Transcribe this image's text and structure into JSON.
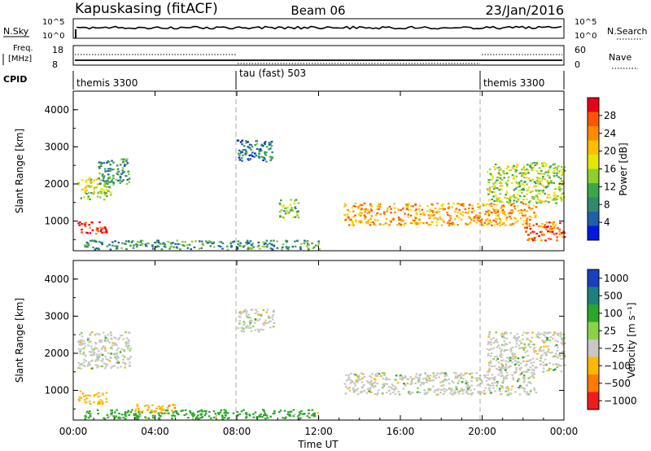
{
  "header": {
    "station": "Kapuskasing (fitACF)",
    "beam": "Beam 06",
    "date": "23/Jan/2016"
  },
  "strips": {
    "nsky_label": "N.Sky",
    "nsky_ticks": [
      "10^5",
      "10^0"
    ],
    "nsearch_label": "N.Search",
    "nsearch_ticks": [
      "10^5",
      "10^0"
    ],
    "freq_label_1": "Freq.",
    "freq_label_2": "[MHz]",
    "freq_ticks": [
      "18",
      "8"
    ],
    "nave_label": "Nave",
    "nave_ticks": [
      "60",
      "0"
    ],
    "cpid_label": "CPID",
    "cpid_segments": [
      "themis 3300",
      "tau (fast) 503",
      "themis 3300"
    ]
  },
  "axes": {
    "ylabel": "Slant Range [km]",
    "xlabel": "Time UT",
    "y_ticks": [
      "4000",
      "3000",
      "2000",
      "1000"
    ],
    "x_ticks": [
      "00:00",
      "04:00",
      "08:00",
      "12:00",
      "16:00",
      "20:00",
      "00:00"
    ]
  },
  "power_colorbar": {
    "label": "Power [dB]",
    "ticks": [
      "28",
      "24",
      "20",
      "16",
      "12",
      "8",
      "4"
    ],
    "colors": [
      "#e8001a",
      "#ff5500",
      "#ff8c00",
      "#ffbf00",
      "#e6e600",
      "#8ccf2e",
      "#3aa64a",
      "#2f8a6c",
      "#1f5ea8",
      "#0018e0"
    ]
  },
  "velocity_colorbar": {
    "label": "Velocity [m s⁻¹]",
    "ticks": [
      "1000",
      "500",
      "100",
      "25",
      "−25",
      "−100",
      "−500",
      "−1000"
    ],
    "colors": [
      "#1b3fbf",
      "#1f7f7f",
      "#2aa62a",
      "#8ad24a",
      "#c8c8c2",
      "#ffb800",
      "#ff7a00",
      "#ee1c1c"
    ]
  },
  "chart_data": [
    {
      "type": "heatmap",
      "title": "Power",
      "xlabel": "Time UT",
      "ylabel": "Slant Range [km]",
      "xlim": [
        "00:00",
        "24:00"
      ],
      "ylim": [
        200,
        4500
      ],
      "colorbar": "Power [dB]",
      "scale_range": [
        0,
        30
      ],
      "echo_regions": [
        {
          "t": [
            0.2,
            1.8
          ],
          "range_km": [
            1600,
            2200
          ],
          "level_db": 14
        },
        {
          "t": [
            0.2,
            1.6
          ],
          "range_km": [
            650,
            1000
          ],
          "level_db": 28
        },
        {
          "t": [
            1.2,
            2.7
          ],
          "range_km": [
            2000,
            2700
          ],
          "level_db": 8
        },
        {
          "t": [
            8.0,
            9.8
          ],
          "range_km": [
            2600,
            3200
          ],
          "level_db": 6
        },
        {
          "t": [
            10.0,
            11.0
          ],
          "range_km": [
            1100,
            1600
          ],
          "level_db": 12
        },
        {
          "t": [
            13.2,
            22.6
          ],
          "range_km": [
            900,
            1500
          ],
          "level_db": 22
        },
        {
          "t": [
            20.2,
            24.0
          ],
          "range_km": [
            1500,
            2600
          ],
          "level_db": 14
        },
        {
          "t": [
            22.0,
            24.0
          ],
          "range_km": [
            500,
            1000
          ],
          "level_db": 26
        },
        {
          "t": [
            0.5,
            12.0
          ],
          "range_km": [
            250,
            500
          ],
          "level_db": 8
        }
      ]
    },
    {
      "type": "heatmap",
      "title": "Velocity",
      "xlabel": "Time UT",
      "ylabel": "Slant Range [km]",
      "xlim": [
        "00:00",
        "24:00"
      ],
      "ylim": [
        200,
        4500
      ],
      "colorbar": "Velocity [m s⁻¹]",
      "scale_range": [
        -1000,
        1000
      ],
      "echo_regions": [
        {
          "t": [
            0.2,
            2.8
          ],
          "range_km": [
            1600,
            2600
          ],
          "velocity": 0
        },
        {
          "t": [
            0.2,
            1.6
          ],
          "range_km": [
            650,
            1000
          ],
          "velocity": -100
        },
        {
          "t": [
            8.0,
            9.8
          ],
          "range_km": [
            2600,
            3200
          ],
          "velocity": 0
        },
        {
          "t": [
            13.2,
            22.6
          ],
          "range_km": [
            900,
            1500
          ],
          "velocity": 0
        },
        {
          "t": [
            20.2,
            24.0
          ],
          "range_km": [
            1500,
            2600
          ],
          "velocity": 0
        },
        {
          "t": [
            0.5,
            12.0
          ],
          "range_km": [
            250,
            500
          ],
          "velocity": 100
        },
        {
          "t": [
            3.0,
            5.0
          ],
          "range_km": [
            400,
            650
          ],
          "velocity": -200
        }
      ]
    }
  ]
}
